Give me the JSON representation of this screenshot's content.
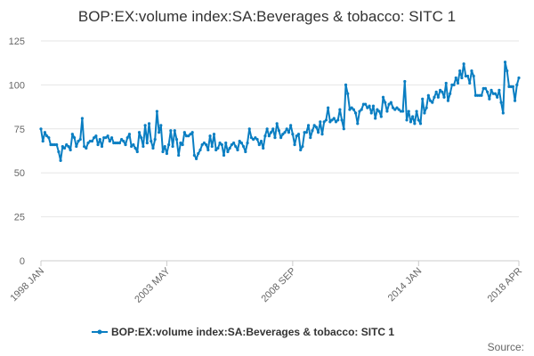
{
  "chart_data": {
    "type": "line",
    "title": "BOP:EX:volume index:SA:Beverages & tobacco: SITC 1",
    "start": "1998 JAN",
    "frequency": "monthly",
    "xtick_labels": [
      "1998 JAN",
      "2003 MAY",
      "2008 SEP",
      "2014 JAN",
      "2018 APR"
    ],
    "xtick_index": [
      0,
      64,
      128,
      192,
      243
    ],
    "ylim": [
      0,
      125
    ],
    "yticks": [
      0,
      25,
      50,
      75,
      100,
      125
    ],
    "grid": true,
    "legend_position": "bottom",
    "color": "#0a7ec2",
    "series": [
      {
        "name": "BOP:EX:volume index:SA:Beverages & tobacco: SITC 1",
        "values": [
          75,
          68,
          73,
          71,
          70,
          66,
          66,
          66,
          66,
          62,
          57,
          65,
          64,
          66,
          65,
          63,
          72,
          70,
          65,
          68,
          69,
          81,
          65,
          64,
          67,
          68,
          68,
          70,
          71,
          66,
          69,
          65,
          70,
          70,
          71,
          68,
          70,
          67,
          67,
          67,
          67,
          69,
          68,
          66,
          70,
          72,
          65,
          66,
          64,
          62,
          73,
          70,
          65,
          77,
          67,
          78,
          68,
          64,
          69,
          85,
          73,
          77,
          62,
          65,
          61,
          66,
          74,
          65,
          74,
          69,
          60,
          67,
          66,
          73,
          71,
          71,
          72,
          73,
          60,
          58,
          61,
          63,
          66,
          67,
          66,
          63,
          71,
          65,
          72,
          63,
          64,
          67,
          66,
          60,
          67,
          62,
          64,
          66,
          67,
          65,
          63,
          68,
          67,
          65,
          62,
          67,
          75,
          70,
          69,
          70,
          69,
          66,
          68,
          64,
          71,
          75,
          71,
          73,
          75,
          70,
          78,
          74,
          70,
          72,
          73,
          75,
          73,
          77,
          72,
          66,
          71,
          72,
          63,
          65,
          73,
          73,
          77,
          70,
          74,
          77,
          76,
          73,
          79,
          72,
          79,
          80,
          87,
          79,
          80,
          81,
          79,
          80,
          86,
          80,
          75,
          100,
          95,
          86,
          87,
          86,
          84,
          78,
          85,
          86,
          89,
          89,
          87,
          88,
          84,
          88,
          81,
          86,
          85,
          82,
          93,
          90,
          85,
          89,
          90,
          87,
          86,
          87,
          86,
          85,
          85,
          102,
          80,
          85,
          79,
          82,
          78,
          85,
          80,
          78,
          92,
          84,
          87,
          94,
          91,
          90,
          93,
          96,
          93,
          97,
          96,
          93,
          101,
          91,
          95,
          100,
          100,
          104,
          101,
          108,
          104,
          112,
          105,
          105,
          101,
          108,
          105,
          94,
          94,
          94,
          94,
          98,
          98,
          96,
          92,
          97,
          95,
          95,
          93,
          97,
          90,
          84,
          113,
          108,
          99,
          99,
          99,
          91,
          100,
          104
        ]
      }
    ],
    "source_label": "Source:"
  }
}
